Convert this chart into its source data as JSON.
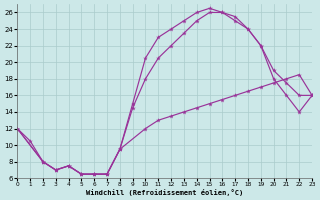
{
  "xlabel": "Windchill (Refroidissement éolien,°C)",
  "background_color": "#cce8e8",
  "grid_color": "#aacccc",
  "line_color": "#993399",
  "xlim": [
    0,
    23
  ],
  "ylim": [
    6,
    27
  ],
  "yticks": [
    6,
    8,
    10,
    12,
    14,
    16,
    18,
    20,
    22,
    24,
    26
  ],
  "xticks": [
    0,
    1,
    2,
    3,
    4,
    5,
    6,
    7,
    8,
    9,
    10,
    11,
    12,
    13,
    14,
    15,
    16,
    17,
    18,
    19,
    20,
    21,
    22,
    23
  ],
  "curve1_x": [
    0,
    1,
    2,
    3,
    4,
    5,
    6,
    7,
    8,
    9,
    10,
    11,
    12,
    13,
    14,
    15,
    16,
    17,
    18,
    19,
    20,
    21,
    22,
    23
  ],
  "curve1_y": [
    12,
    10.5,
    8.0,
    7.0,
    7.5,
    6.5,
    6.5,
    6.5,
    9.5,
    15.0,
    20.5,
    23.0,
    24.0,
    25.0,
    26.0,
    26.5,
    26.0,
    25.5,
    24.0,
    22.0,
    18.0,
    16.0,
    14.0,
    16.0
  ],
  "curve2_x": [
    0,
    2,
    3,
    4,
    5,
    6,
    7,
    8,
    9,
    10,
    11,
    12,
    13,
    14,
    15,
    16,
    17,
    18,
    19,
    20,
    21,
    22,
    23
  ],
  "curve2_y": [
    12.0,
    8.0,
    7.0,
    7.5,
    6.5,
    6.5,
    6.5,
    9.5,
    14.5,
    18.0,
    20.5,
    22.0,
    23.5,
    25.0,
    26.0,
    26.0,
    25.0,
    24.0,
    22.0,
    19.0,
    17.5,
    16.0,
    16.0
  ],
  "curve3_x": [
    0,
    2,
    3,
    4,
    5,
    6,
    7,
    8,
    10,
    11,
    12,
    13,
    14,
    15,
    16,
    17,
    18,
    19,
    20,
    21,
    22,
    23
  ],
  "curve3_y": [
    12.0,
    8.0,
    7.0,
    7.5,
    6.5,
    6.5,
    6.5,
    9.5,
    12.0,
    13.0,
    13.5,
    14.0,
    14.5,
    15.0,
    15.5,
    16.0,
    16.5,
    17.0,
    17.5,
    18.0,
    18.5,
    16.0
  ]
}
